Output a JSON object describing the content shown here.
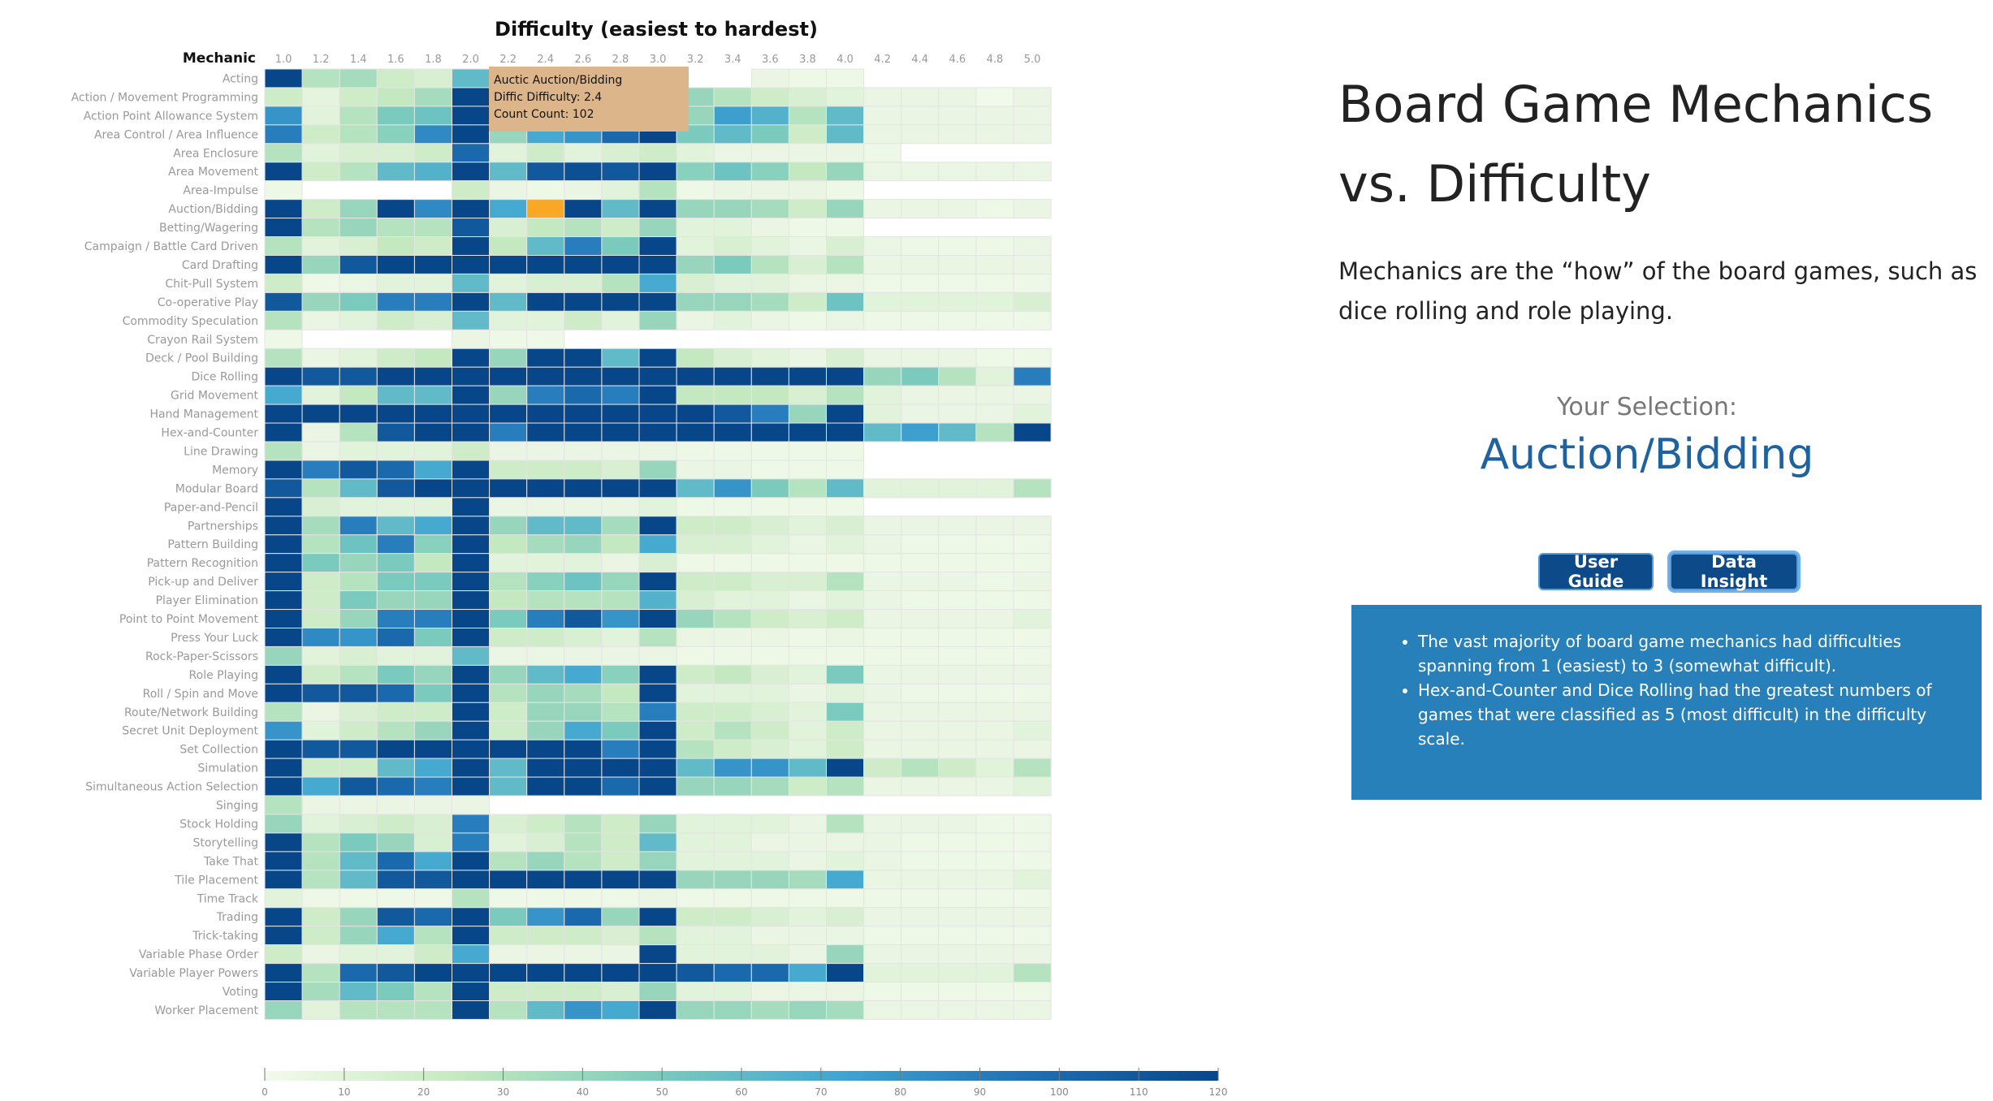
{
  "page": {
    "title": "Board Game Mechanics vs. Difficulty",
    "description": "Mechanics are the “how” of the board games, such as dice rolling and role playing.",
    "selection_label": "Your Selection:",
    "selection_value": "Auction/Bidding",
    "buttons": {
      "user_guide": "User Guide",
      "data_insight": "Data Insight"
    },
    "insights": [
      "The vast majority of board game mechanics had difficulties spanning from 1 (easiest) to 3 (somewhat difficult).",
      "Hex-and-Counter and Dice Rolling had the greatest numbers of games that were classified as 5 (most difficult) in the difficulty scale."
    ]
  },
  "tooltip": {
    "line1": "Auctic Auction/Bidding",
    "line2": "Diffic Difficulty: 2.4",
    "line3": "Count Count: 102"
  },
  "chart_data": {
    "type": "heatmap",
    "title": "Difficulty (easiest to hardest)",
    "ylabel": "Mechanic",
    "x": [
      "1.0",
      "1.2",
      "1.4",
      "1.6",
      "1.8",
      "2.0",
      "2.2",
      "2.4",
      "2.6",
      "2.8",
      "3.0",
      "3.2",
      "3.4",
      "3.6",
      "3.8",
      "4.0",
      "4.2",
      "4.4",
      "4.6",
      "4.8",
      "5.0"
    ],
    "y": [
      "Acting",
      "Action / Movement Programming",
      "Action Point Allowance System",
      "Area Control / Area Influence",
      "Area Enclosure",
      "Area Movement",
      "Area-Impulse",
      "Auction/Bidding",
      "Betting/Wagering",
      "Campaign / Battle Card Driven",
      "Card Drafting",
      "Chit-Pull System",
      "Co-operative Play",
      "Commodity Speculation",
      "Crayon Rail System",
      "Deck / Pool Building",
      "Dice Rolling",
      "Grid Movement",
      "Hand Management",
      "Hex-and-Counter",
      "Line Drawing",
      "Memory",
      "Modular Board",
      "Paper-and-Pencil",
      "Partnerships",
      "Pattern Building",
      "Pattern Recognition",
      "Pick-up and Deliver",
      "Player Elimination",
      "Point to Point Movement",
      "Press Your Luck",
      "Rock-Paper-Scissors",
      "Role Playing",
      "Roll / Spin and Move",
      "Route/Network Building",
      "Secret Unit Deployment",
      "Set Collection",
      "Simulation",
      "Simultaneous Action Selection",
      "Singing",
      "Stock Holding",
      "Storytelling",
      "Take That",
      "Tile Placement",
      "Time Track",
      "Trading",
      "Trick-taking",
      "Variable Phase Order",
      "Variable Player Powers",
      "Voting",
      "Worker Placement"
    ],
    "values": [
      [
        120,
        30,
        35,
        20,
        15,
        60,
        null,
        null,
        null,
        null,
        null,
        null,
        null,
        5,
        3,
        3,
        null,
        null,
        null,
        null,
        null
      ],
      [
        20,
        8,
        20,
        25,
        35,
        120,
        20,
        30,
        40,
        40,
        110,
        40,
        30,
        20,
        15,
        10,
        5,
        5,
        5,
        1,
        5
      ],
      [
        80,
        10,
        30,
        50,
        55,
        120,
        40,
        70,
        100,
        115,
        120,
        40,
        75,
        65,
        30,
        60,
        5,
        5,
        5,
        5,
        5
      ],
      [
        90,
        20,
        30,
        45,
        85,
        120,
        40,
        70,
        80,
        100,
        120,
        50,
        60,
        50,
        20,
        60,
        5,
        5,
        5,
        5,
        5
      ],
      [
        30,
        10,
        15,
        15,
        20,
        100,
        10,
        20,
        10,
        15,
        20,
        10,
        5,
        5,
        5,
        5,
        3,
        null,
        null,
        null,
        null
      ],
      [
        120,
        20,
        30,
        60,
        65,
        120,
        60,
        110,
        115,
        110,
        120,
        45,
        55,
        45,
        25,
        40,
        5,
        5,
        5,
        5,
        5
      ],
      [
        3,
        null,
        null,
        null,
        null,
        20,
        5,
        3,
        5,
        10,
        30,
        3,
        5,
        5,
        5,
        3,
        null,
        null,
        null,
        null,
        null
      ],
      [
        120,
        20,
        40,
        120,
        85,
        120,
        70,
        102,
        120,
        60,
        120,
        40,
        40,
        35,
        20,
        40,
        5,
        5,
        5,
        3,
        5
      ],
      [
        120,
        30,
        40,
        30,
        30,
        110,
        15,
        25,
        30,
        20,
        40,
        10,
        10,
        5,
        3,
        3,
        null,
        null,
        null,
        null,
        null
      ],
      [
        30,
        10,
        15,
        25,
        20,
        120,
        25,
        60,
        90,
        50,
        120,
        10,
        15,
        10,
        5,
        15,
        5,
        3,
        3,
        3,
        5
      ],
      [
        120,
        40,
        110,
        120,
        120,
        120,
        120,
        120,
        120,
        120,
        120,
        40,
        50,
        30,
        15,
        30,
        5,
        5,
        5,
        5,
        5
      ],
      [
        20,
        3,
        5,
        10,
        10,
        60,
        10,
        15,
        15,
        30,
        70,
        15,
        10,
        10,
        5,
        5,
        3,
        3,
        3,
        3,
        3
      ],
      [
        110,
        40,
        50,
        90,
        90,
        120,
        60,
        120,
        120,
        120,
        120,
        40,
        40,
        35,
        20,
        55,
        10,
        10,
        10,
        10,
        15
      ],
      [
        30,
        5,
        10,
        20,
        15,
        60,
        10,
        10,
        20,
        10,
        40,
        5,
        10,
        5,
        3,
        5,
        3,
        3,
        3,
        3,
        3
      ],
      [
        3,
        null,
        null,
        null,
        null,
        5,
        3,
        3,
        null,
        null,
        null,
        null,
        null,
        null,
        null,
        null,
        null,
        null,
        null,
        null,
        null
      ],
      [
        30,
        5,
        10,
        20,
        25,
        120,
        40,
        120,
        120,
        60,
        120,
        25,
        15,
        10,
        5,
        15,
        5,
        5,
        5,
        3,
        3
      ],
      [
        120,
        110,
        110,
        120,
        120,
        120,
        120,
        120,
        120,
        120,
        120,
        120,
        120,
        120,
        120,
        120,
        40,
        50,
        30,
        10,
        90
      ],
      [
        70,
        10,
        25,
        60,
        60,
        120,
        40,
        90,
        100,
        90,
        120,
        25,
        25,
        25,
        15,
        30,
        10,
        5,
        5,
        5,
        5
      ],
      [
        120,
        120,
        120,
        120,
        120,
        120,
        120,
        120,
        120,
        120,
        120,
        120,
        110,
        90,
        40,
        120,
        10,
        5,
        5,
        5,
        10
      ],
      [
        120,
        5,
        30,
        110,
        120,
        120,
        90,
        120,
        120,
        120,
        120,
        120,
        120,
        120,
        120,
        120,
        60,
        75,
        60,
        30,
        120
      ],
      [
        30,
        5,
        10,
        10,
        10,
        20,
        5,
        5,
        5,
        5,
        5,
        3,
        3,
        3,
        3,
        3,
        null,
        null,
        null,
        null,
        null
      ],
      [
        120,
        90,
        110,
        100,
        70,
        120,
        20,
        20,
        20,
        15,
        40,
        5,
        5,
        3,
        3,
        3,
        null,
        null,
        null,
        null,
        null
      ],
      [
        110,
        30,
        60,
        110,
        120,
        120,
        120,
        120,
        120,
        120,
        120,
        60,
        80,
        50,
        30,
        60,
        10,
        10,
        10,
        10,
        30
      ],
      [
        120,
        15,
        10,
        10,
        10,
        120,
        5,
        5,
        5,
        5,
        10,
        3,
        3,
        3,
        3,
        3,
        null,
        null,
        null,
        null,
        null
      ],
      [
        120,
        35,
        90,
        60,
        70,
        120,
        40,
        60,
        60,
        35,
        120,
        20,
        20,
        15,
        10,
        15,
        5,
        5,
        5,
        5,
        5
      ],
      [
        120,
        30,
        55,
        90,
        45,
        120,
        25,
        35,
        40,
        25,
        70,
        15,
        15,
        10,
        5,
        10,
        5,
        3,
        3,
        3,
        3
      ],
      [
        120,
        50,
        40,
        50,
        25,
        120,
        10,
        10,
        10,
        5,
        15,
        3,
        3,
        3,
        3,
        3,
        3,
        3,
        3,
        3,
        3
      ],
      [
        120,
        20,
        30,
        50,
        50,
        120,
        30,
        45,
        55,
        40,
        120,
        20,
        20,
        15,
        15,
        30,
        5,
        5,
        5,
        3,
        5
      ],
      [
        120,
        20,
        50,
        40,
        40,
        120,
        25,
        30,
        30,
        30,
        65,
        15,
        10,
        10,
        5,
        10,
        5,
        3,
        3,
        3,
        3
      ],
      [
        120,
        20,
        40,
        90,
        90,
        120,
        50,
        90,
        110,
        80,
        120,
        40,
        30,
        20,
        15,
        20,
        5,
        5,
        5,
        5,
        10
      ],
      [
        120,
        85,
        80,
        100,
        50,
        120,
        20,
        20,
        15,
        10,
        30,
        5,
        5,
        5,
        3,
        5,
        3,
        3,
        3,
        3,
        3
      ],
      [
        40,
        10,
        15,
        10,
        10,
        60,
        5,
        5,
        5,
        5,
        5,
        3,
        3,
        3,
        3,
        3,
        3,
        3,
        3,
        3,
        3
      ],
      [
        120,
        20,
        30,
        50,
        40,
        120,
        40,
        60,
        70,
        45,
        120,
        20,
        25,
        15,
        10,
        50,
        5,
        5,
        5,
        5,
        5
      ],
      [
        120,
        110,
        110,
        100,
        50,
        120,
        30,
        40,
        35,
        25,
        120,
        10,
        10,
        10,
        5,
        10,
        5,
        3,
        3,
        3,
        3
      ],
      [
        30,
        5,
        15,
        20,
        20,
        120,
        20,
        40,
        40,
        30,
        90,
        20,
        20,
        15,
        10,
        50,
        5,
        5,
        5,
        5,
        5
      ],
      [
        80,
        10,
        20,
        30,
        40,
        120,
        20,
        40,
        70,
        50,
        120,
        20,
        30,
        20,
        10,
        20,
        5,
        5,
        5,
        5,
        10
      ],
      [
        120,
        110,
        110,
        120,
        120,
        120,
        120,
        120,
        120,
        90,
        120,
        30,
        20,
        15,
        10,
        20,
        5,
        5,
        5,
        5,
        5
      ],
      [
        120,
        20,
        20,
        60,
        70,
        120,
        60,
        120,
        120,
        120,
        120,
        60,
        80,
        80,
        60,
        120,
        20,
        30,
        20,
        10,
        30
      ],
      [
        120,
        70,
        110,
        100,
        90,
        120,
        60,
        120,
        120,
        100,
        120,
        40,
        40,
        35,
        20,
        30,
        5,
        5,
        5,
        5,
        10
      ],
      [
        30,
        5,
        5,
        5,
        5,
        5,
        null,
        null,
        null,
        null,
        null,
        null,
        null,
        null,
        null,
        null,
        null,
        null,
        null,
        null,
        null
      ],
      [
        40,
        10,
        15,
        20,
        15,
        90,
        15,
        20,
        30,
        20,
        40,
        10,
        10,
        10,
        5,
        30,
        5,
        5,
        5,
        3,
        3
      ],
      [
        120,
        30,
        50,
        40,
        15,
        90,
        10,
        15,
        30,
        20,
        60,
        10,
        10,
        5,
        5,
        5,
        5,
        3,
        3,
        3,
        3
      ],
      [
        120,
        30,
        60,
        100,
        70,
        120,
        30,
        40,
        30,
        20,
        40,
        10,
        10,
        10,
        5,
        10,
        5,
        3,
        3,
        3,
        3
      ],
      [
        120,
        30,
        60,
        110,
        110,
        120,
        120,
        120,
        120,
        120,
        120,
        40,
        40,
        40,
        35,
        70,
        5,
        5,
        5,
        5,
        10
      ],
      [
        10,
        3,
        3,
        3,
        3,
        30,
        3,
        3,
        3,
        3,
        5,
        3,
        3,
        3,
        3,
        3,
        3,
        3,
        3,
        3,
        3
      ],
      [
        120,
        20,
        40,
        110,
        100,
        120,
        50,
        80,
        100,
        40,
        120,
        20,
        20,
        15,
        10,
        15,
        5,
        5,
        5,
        5,
        5
      ],
      [
        120,
        20,
        40,
        70,
        30,
        120,
        20,
        20,
        20,
        15,
        30,
        10,
        10,
        5,
        5,
        5,
        3,
        3,
        3,
        3,
        3
      ],
      [
        20,
        5,
        10,
        10,
        20,
        70,
        5,
        5,
        5,
        5,
        120,
        10,
        10,
        10,
        5,
        40,
        5,
        5,
        5,
        5,
        5
      ],
      [
        120,
        30,
        100,
        110,
        120,
        120,
        120,
        120,
        120,
        120,
        120,
        110,
        100,
        100,
        70,
        120,
        10,
        10,
        10,
        10,
        30
      ],
      [
        120,
        35,
        60,
        50,
        30,
        120,
        20,
        20,
        20,
        15,
        40,
        10,
        10,
        5,
        5,
        5,
        3,
        3,
        3,
        3,
        3
      ],
      [
        40,
        10,
        30,
        30,
        30,
        120,
        30,
        60,
        80,
        70,
        120,
        40,
        40,
        35,
        40,
        35,
        5,
        5,
        5,
        5,
        5
      ]
    ],
    "color_scale": {
      "min": 0,
      "max": 120,
      "colors": [
        "#f3faec",
        "#c7e9c0",
        "#7fcdbb",
        "#41a6d2",
        "#1f70b4",
        "#08468a"
      ]
    },
    "legend_ticks": [
      0,
      10,
      20,
      30,
      40,
      50,
      60,
      70,
      80,
      90,
      100,
      110,
      120
    ],
    "highlight": {
      "x": "2.4",
      "y": "Auction/Bidding",
      "color": "#f9a825"
    }
  }
}
